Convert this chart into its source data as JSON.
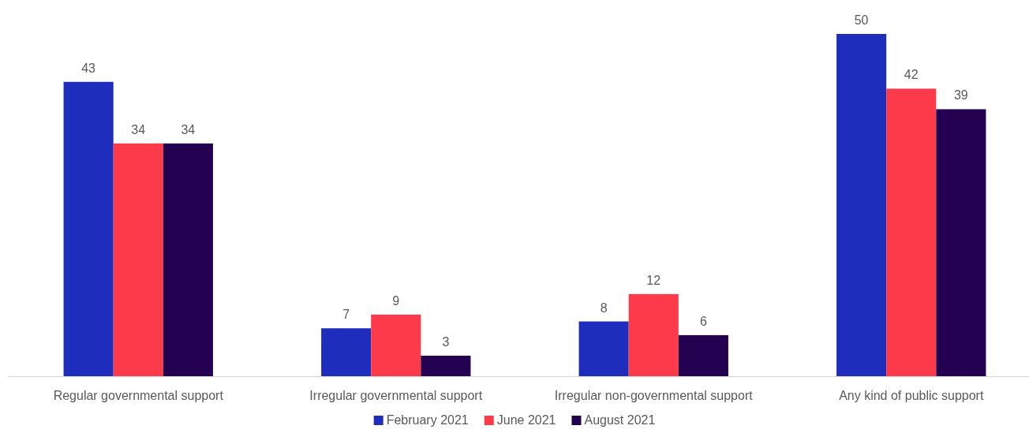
{
  "chart_data": {
    "type": "bar",
    "categories": [
      "Regular governmental support",
      "Irregular governmental support",
      "Irregular non-governmental support",
      "Any kind of public support"
    ],
    "series": [
      {
        "name": "February 2021",
        "color": "#1f2dbd",
        "values": [
          43,
          7,
          8,
          50
        ]
      },
      {
        "name": "June 2021",
        "color": "#fd3a4a",
        "values": [
          34,
          9,
          12,
          42
        ]
      },
      {
        "name": "August 2021",
        "color": "#230050",
        "values": [
          34,
          3,
          6,
          39
        ]
      }
    ],
    "data_labels": true,
    "legend": "bottom"
  }
}
